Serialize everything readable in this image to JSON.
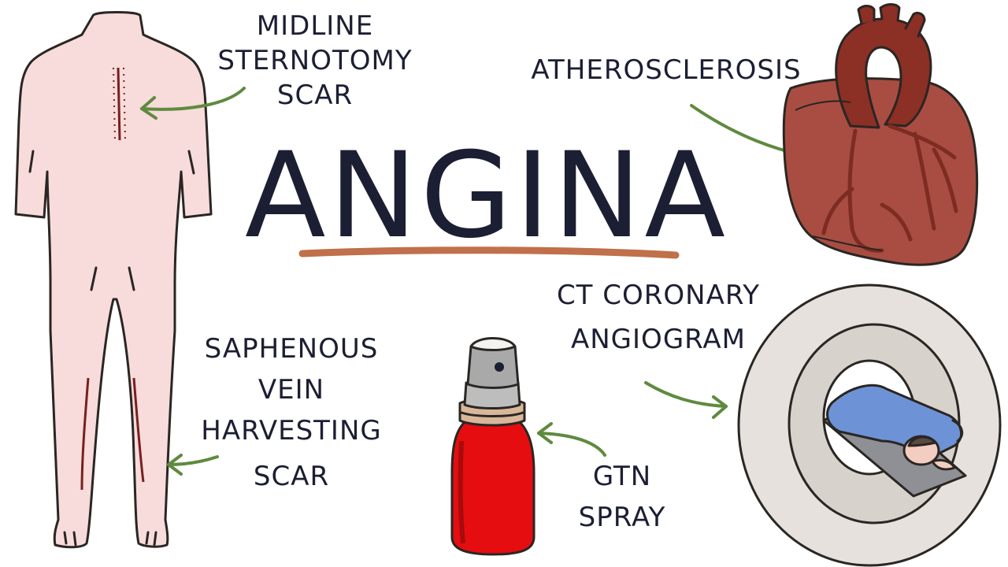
{
  "title": "ANGINA",
  "labels": {
    "sternotomy": [
      "MIDLINE",
      "STERNOTOMY",
      "SCAR"
    ],
    "saphenous": [
      "SAPHENOUS",
      "VEIN",
      "HARVESTING",
      "SCAR"
    ],
    "atherosclerosis": [
      "ATHEROSCLEROSIS"
    ],
    "ct": [
      "CT CORONARY",
      "ANGIOGRAM"
    ],
    "gtn": [
      "GTN",
      "SPRAY"
    ]
  },
  "icons": [
    "body-back-illustration",
    "heart-illustration",
    "ct-scanner-illustration",
    "gtn-spray-bottle-illustration"
  ],
  "colors": {
    "text": "#1c1f33",
    "underline": "#c0704a",
    "arrow": "#5f8a3e",
    "skin": "#f7dcdb",
    "scar": "#7a1f1f",
    "heart": "#a94d42",
    "aorta": "#8c2f25",
    "bottle": "#e50d10",
    "scanner": "#e6e1dc",
    "patient_gown": "#6d93d6"
  }
}
